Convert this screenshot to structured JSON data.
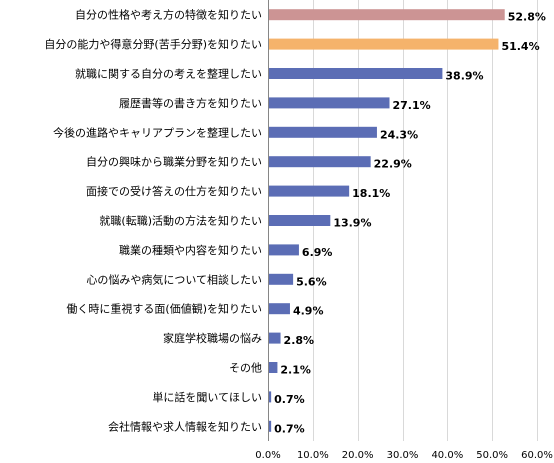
{
  "chart_data": {
    "type": "bar",
    "orientation": "horizontal",
    "categories": [
      "自分の性格や考え方の特徴を知りたい",
      "自分の能力や得意分野(苦手分野)を知りたい",
      "就職に関する自分の考えを整理したい",
      "履歴書等の書き方を知りたい",
      "今後の進路やキャリアプランを整理したい",
      "自分の興味から職業分野を知りたい",
      "面接での受け答えの仕方を知りたい",
      "就職(転職)活動の方法を知りたい",
      "職業の種類や内容を知りたい",
      "心の悩みや病気について相談したい",
      "働く時に重視する面(価値観)を知りたい",
      "家庭学校職場の悩み",
      "その他",
      "単に話を聞いてほしい",
      "会社情報や求人情報を知りたい"
    ],
    "values": [
      52.8,
      51.4,
      38.9,
      27.1,
      24.3,
      22.9,
      18.1,
      13.9,
      6.9,
      5.6,
      4.9,
      2.8,
      2.1,
      0.7,
      0.7
    ],
    "value_labels": [
      "52.8%",
      "51.4%",
      "38.9%",
      "27.1%",
      "24.3%",
      "22.9%",
      "18.1%",
      "13.9%",
      "6.9%",
      "5.6%",
      "4.9%",
      "2.8%",
      "2.1%",
      "0.7%",
      "0.7%"
    ],
    "bar_colors": [
      "#cc9494",
      "#f5b36b",
      "#5b6db5",
      "#5b6db5",
      "#5b6db5",
      "#5b6db5",
      "#5b6db5",
      "#5b6db5",
      "#5b6db5",
      "#5b6db5",
      "#5b6db5",
      "#5b6db5",
      "#5b6db5",
      "#5b6db5",
      "#5b6db5"
    ],
    "xlim": [
      0,
      60
    ],
    "x_ticks": [
      0,
      10,
      20,
      30,
      40,
      50,
      60
    ],
    "x_tick_labels": [
      "0.0%",
      "10.0%",
      "20.0%",
      "30.0%",
      "40.0%",
      "50.0%",
      "60.0%"
    ],
    "grid": true,
    "grid_color": "#d9d9d9",
    "axis_color": "#868686",
    "title": "",
    "xlabel": "",
    "ylabel": ""
  }
}
